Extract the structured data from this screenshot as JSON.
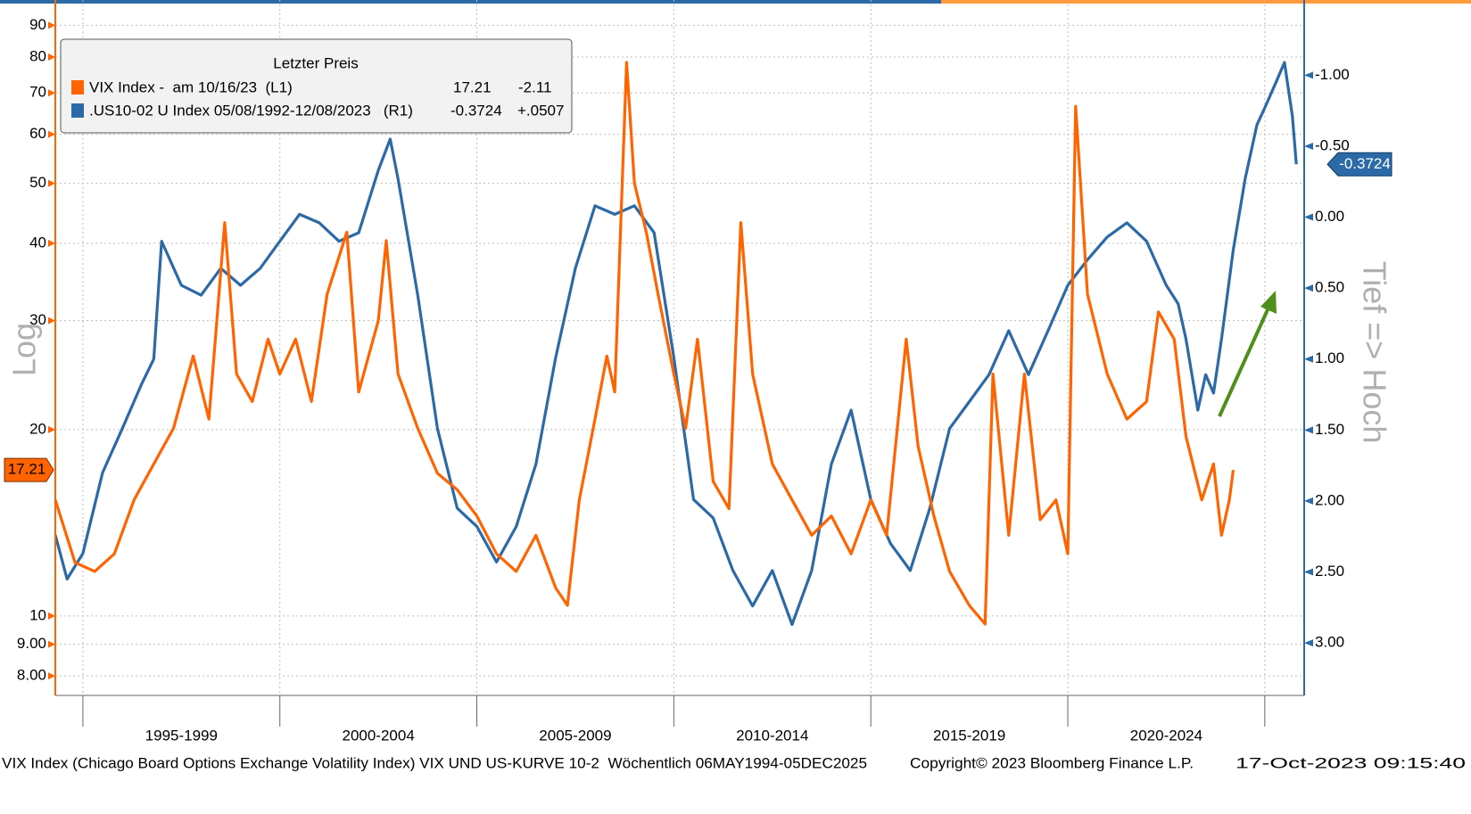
{
  "chart_data": {
    "type": "line",
    "legend_title": "Letzter Preis",
    "left_axis_label": "Log",
    "right_axis_label": "Tief => Hoch",
    "footer": {
      "description": "VIX Index (Chicago Board Options Exchange Volatility Index) VIX UND US-KURVE 10-2  Wöchentlich 06MAY1994-05DEC2025",
      "copyright": "Copyright© 2023 Bloomberg Finance L.P.",
      "timestamp": "17-Oct-2023 09:15:40"
    },
    "xlim": [
      1994.3,
      2026.0
    ],
    "xticks": [
      1995,
      2000,
      2005,
      2010,
      2015,
      2020,
      2025
    ],
    "period_labels": [
      "1995-1999",
      "2000-2004",
      "2005-2009",
      "2010-2014",
      "2015-2019",
      "2020-2024"
    ],
    "ylim": [
      7.44,
      98.9
    ],
    "yscale": "log",
    "yticks": [
      {
        "value": 8,
        "label": "8.00"
      },
      {
        "value": 9,
        "label": "9.00"
      },
      10,
      20,
      30,
      40,
      50,
      60,
      70,
      80,
      90
    ],
    "y2lim": [
      -1.53,
      3.37
    ],
    "y2_inverted": true,
    "y2ticks": [
      {
        "value": -1,
        "label": "-1.00"
      },
      {
        "value": -0.5,
        "label": "-0.50"
      },
      {
        "value": 0,
        "label": "0.00"
      },
      {
        "value": 0.5,
        "label": "0.50"
      },
      {
        "value": 1,
        "label": "1.00"
      },
      {
        "value": 1.5,
        "label": "1.50"
      },
      {
        "value": 2,
        "label": "2.00"
      },
      {
        "value": 2.5,
        "label": "2.50"
      },
      {
        "value": 3,
        "label": "3.00"
      }
    ],
    "grid": true,
    "series": [
      {
        "name": "VIX Index -  am 10/16/23  (L1)",
        "color": "#ff6400",
        "axis": "y",
        "change": -2.11,
        "x": [
          1994.3,
          1994.8,
          1995.3,
          1995.8,
          1996.3,
          1996.8,
          1997.3,
          1997.8,
          1998.2,
          1998.6,
          1998.9,
          1999.3,
          1999.7,
          2000.0,
          2000.4,
          2000.8,
          2001.2,
          2001.7,
          2002.0,
          2002.5,
          2002.7,
          2003.0,
          2003.5,
          2004.0,
          2004.5,
          2005.0,
          2005.5,
          2006.0,
          2006.5,
          2007.0,
          2007.3,
          2007.6,
          2008.0,
          2008.3,
          2008.5,
          2008.8,
          2009.0,
          2009.3,
          2009.6,
          2010.0,
          2010.3,
          2010.6,
          2011.0,
          2011.4,
          2011.7,
          2012.0,
          2012.5,
          2013.0,
          2013.5,
          2014.0,
          2014.5,
          2015.0,
          2015.4,
          2015.9,
          2016.2,
          2016.6,
          2017.0,
          2017.5,
          2017.9,
          2018.1,
          2018.5,
          2018.9,
          2019.3,
          2019.7,
          2020.0,
          2020.2,
          2020.5,
          2021.0,
          2021.5,
          2022.0,
          2022.3,
          2022.7,
          2023.0,
          2023.4,
          2023.7,
          2023.9,
          2024.1,
          2024.2
        ],
        "values": [
          15.4,
          12.2,
          11.8,
          12.6,
          15.4,
          17.6,
          20.1,
          26.3,
          20.8,
          43.2,
          24.6,
          22.2,
          28.0,
          24.6,
          28.0,
          22.2,
          33.1,
          41.7,
          23.0,
          30.0,
          40.4,
          24.6,
          20.1,
          17.0,
          16.0,
          14.5,
          12.6,
          11.8,
          13.5,
          11.1,
          10.4,
          15.4,
          20.8,
          26.3,
          23.0,
          78.4,
          50.0,
          41.7,
          33.1,
          24.6,
          20.1,
          28.0,
          16.5,
          14.9,
          43.2,
          24.6,
          17.6,
          15.4,
          13.5,
          14.5,
          12.6,
          15.4,
          13.5,
          28.0,
          18.8,
          14.5,
          11.8,
          10.4,
          9.7,
          24.6,
          13.5,
          24.6,
          14.3,
          15.4,
          12.6,
          66.6,
          33.1,
          24.6,
          20.8,
          22.2,
          31.0,
          28.0,
          19.5,
          15.4,
          17.6,
          13.5,
          15.4,
          17.21
        ]
      },
      {
        "name": ".US10-02 U Index 05/08/1992-12/08/2023   (R1)",
        "color": "#2b6aa6",
        "axis": "y2",
        "change": {
          "value": 0.0507,
          "label": "+.0507"
        },
        "x": [
          1994.3,
          1994.6,
          1995.0,
          1995.5,
          1996.0,
          1996.5,
          1996.8,
          1997.0,
          1997.5,
          1998.0,
          1998.5,
          1999.0,
          1999.5,
          2000.0,
          2000.5,
          2001.0,
          2001.5,
          2002.0,
          2002.5,
          2002.8,
          2003.0,
          2003.5,
          2004.0,
          2004.5,
          2005.0,
          2005.5,
          2006.0,
          2006.5,
          2007.0,
          2007.5,
          2008.0,
          2008.5,
          2009.0,
          2009.5,
          2010.0,
          2010.5,
          2011.0,
          2011.5,
          2012.0,
          2012.5,
          2013.0,
          2013.5,
          2014.0,
          2014.5,
          2015.0,
          2015.5,
          2016.0,
          2016.5,
          2017.0,
          2017.5,
          2018.0,
          2018.5,
          2019.0,
          2019.5,
          2020.0,
          2020.5,
          2021.0,
          2021.5,
          2022.0,
          2022.5,
          2022.8,
          2023.0,
          2023.3,
          2023.5,
          2023.7,
          2023.9,
          2024.2,
          2024.5,
          2024.8,
          2025.0,
          2025.3,
          2025.5,
          2025.7,
          2025.8
        ],
        "values": [
          2.24,
          2.55,
          2.37,
          1.8,
          1.49,
          1.17,
          1.0,
          0.17,
          0.48,
          0.55,
          0.36,
          0.48,
          0.36,
          0.17,
          -0.02,
          0.04,
          0.17,
          0.11,
          -0.33,
          -0.55,
          -0.27,
          0.55,
          1.49,
          2.05,
          2.18,
          2.43,
          2.18,
          1.74,
          0.99,
          0.36,
          -0.08,
          -0.02,
          -0.08,
          0.11,
          0.99,
          1.99,
          2.12,
          2.49,
          2.74,
          2.49,
          2.87,
          2.49,
          1.74,
          1.36,
          1.99,
          2.3,
          2.49,
          2.05,
          1.49,
          1.3,
          1.11,
          0.8,
          1.11,
          0.8,
          0.48,
          0.3,
          0.14,
          0.04,
          0.17,
          0.48,
          0.61,
          0.86,
          1.36,
          1.11,
          1.24,
          0.86,
          0.23,
          -0.27,
          -0.65,
          -0.77,
          -0.96,
          -1.09,
          -0.71,
          -0.3724
        ]
      }
    ]
  }
}
